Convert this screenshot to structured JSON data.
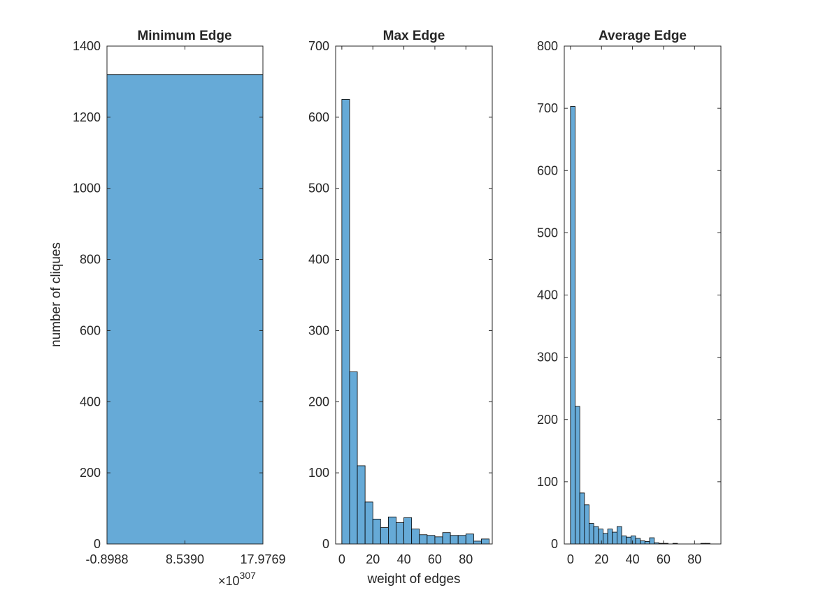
{
  "chart_data": [
    {
      "type": "bar",
      "title": "Minimum Edge",
      "xlabel": "",
      "ylabel": "number of cliques",
      "ylim": [
        0,
        1400
      ],
      "yticks": [
        0,
        200,
        400,
        600,
        800,
        1000,
        1200,
        1400
      ],
      "xlim": [
        -0.8988,
        17.9769
      ],
      "xtick_values": [
        -0.8988,
        8.539,
        17.9769
      ],
      "xtick_labels": [
        "-0.8988",
        "8.5390",
        "17.9769"
      ],
      "x_exponent_label": "×10",
      "x_exponent": "307",
      "bins": [
        {
          "start": -0.8988,
          "end": 17.9769,
          "count": 1320
        }
      ]
    },
    {
      "type": "bar",
      "title": "Max Edge",
      "xlabel": "weight of edges",
      "ylabel": "",
      "ylim": [
        0,
        700
      ],
      "yticks": [
        0,
        100,
        200,
        300,
        400,
        500,
        600,
        700
      ],
      "xlim": [
        -4,
        97
      ],
      "xtick_values": [
        0,
        20,
        40,
        60,
        80
      ],
      "xtick_labels": [
        "0",
        "20",
        "40",
        "60",
        "80"
      ],
      "bin_start": 0,
      "bin_width": 5,
      "values": [
        625,
        242,
        110,
        59,
        35,
        23,
        38,
        30,
        37,
        21,
        13,
        12,
        10,
        16,
        12,
        12,
        14,
        4,
        7
      ]
    },
    {
      "type": "bar",
      "title": "Average Edge",
      "xlabel": "",
      "ylabel": "",
      "ylim": [
        0,
        800
      ],
      "yticks": [
        0,
        100,
        200,
        300,
        400,
        500,
        600,
        700,
        800
      ],
      "xlim": [
        -4,
        97
      ],
      "xtick_values": [
        0,
        20,
        40,
        60,
        80
      ],
      "xtick_labels": [
        "0",
        "20",
        "40",
        "60",
        "80"
      ],
      "bin_start": 0,
      "bin_width": 3,
      "values": [
        703,
        221,
        82,
        63,
        33,
        28,
        24,
        17,
        24,
        19,
        28,
        13,
        11,
        13,
        9,
        5,
        4,
        10,
        2,
        1,
        1,
        0,
        1,
        0,
        0,
        0,
        0,
        0,
        1,
        1,
        0,
        0
      ]
    }
  ],
  "colors": {
    "bar_fill": "#66aad7",
    "bar_edge": "#000000",
    "axis": "#262626",
    "background": "#ffffff"
  }
}
